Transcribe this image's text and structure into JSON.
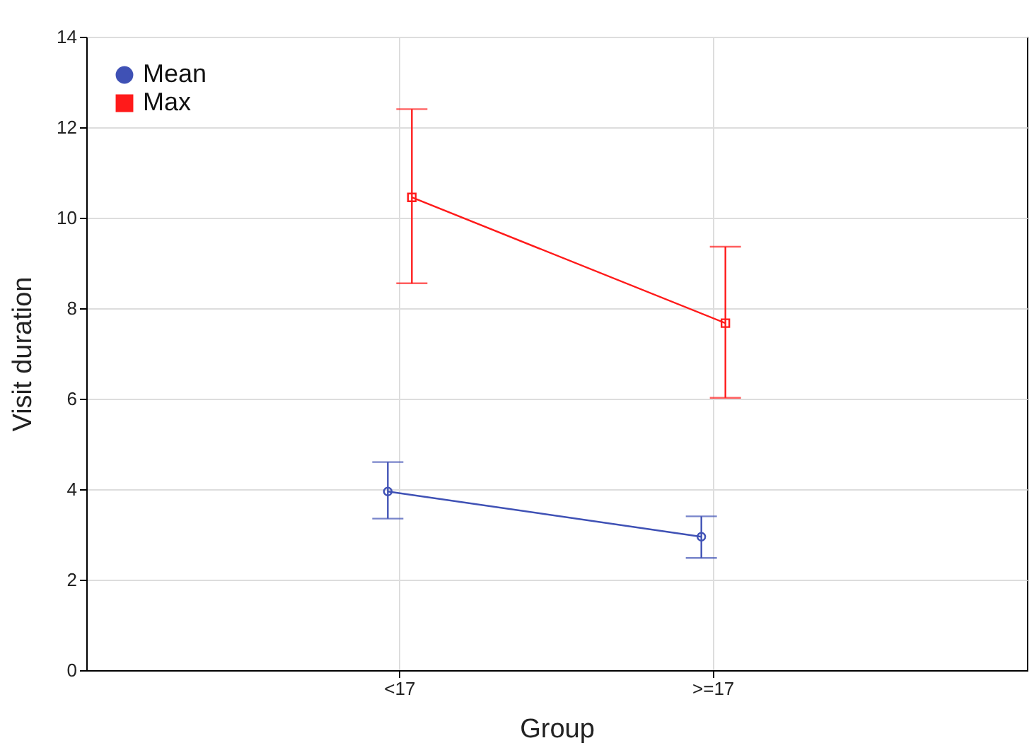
{
  "chart_data": {
    "type": "line",
    "xlabel": "Group",
    "ylabel": "Visit duration",
    "categories": [
      "<17",
      ">=17"
    ],
    "series": [
      {
        "name": "Mean",
        "color": "#3f51b5",
        "values": [
          3.95,
          2.95
        ],
        "errors": [
          [
            3.35,
            4.6
          ],
          [
            2.48,
            3.4
          ]
        ],
        "marker": "circle"
      },
      {
        "name": "Max",
        "color": "#ff1a1a",
        "values": [
          10.45,
          7.67
        ],
        "errors": [
          [
            8.55,
            12.4
          ],
          [
            6.02,
            9.36
          ]
        ],
        "marker": "square"
      }
    ],
    "ylim": [
      0,
      14
    ],
    "yticks": [
      0,
      2,
      4,
      6,
      8,
      10,
      12,
      14
    ],
    "grid": true,
    "legend": "top left"
  }
}
